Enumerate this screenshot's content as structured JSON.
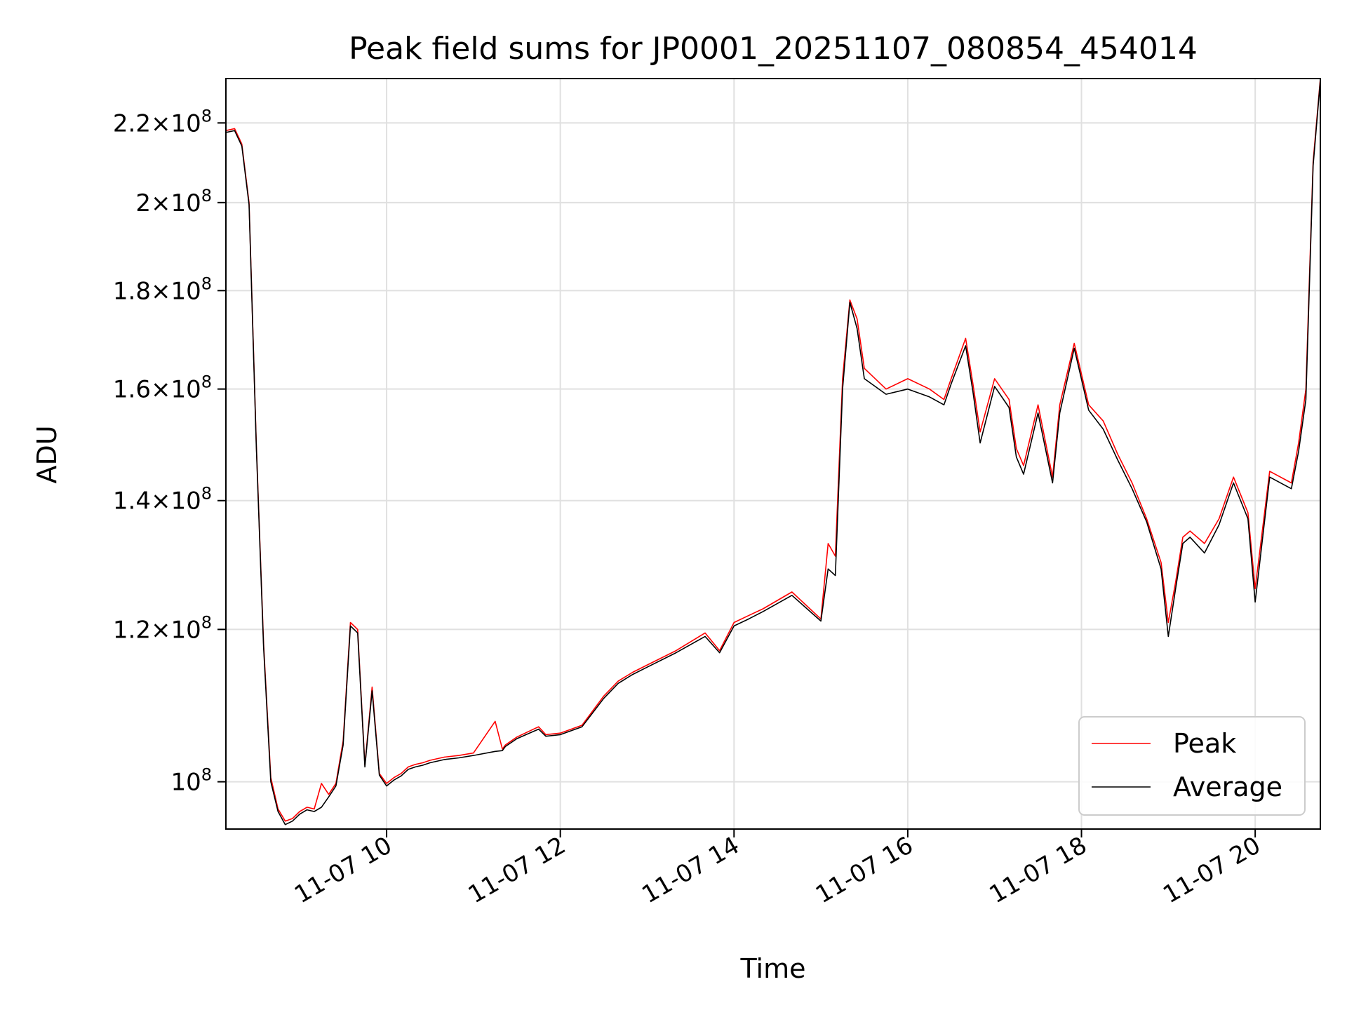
{
  "chart_data": {
    "type": "line",
    "title": "Peak field sums for JP0001_20251107_080854_454014",
    "xlabel": "Time",
    "ylabel": "ADU",
    "yscale": "log",
    "xlim": [
      "2025-11-07 08:09",
      "2025-11-07 20:45"
    ],
    "ylim": [
      94500000,
      232000000
    ],
    "grid": true,
    "legend_position": "lower right",
    "x_ticks": [
      "11-07 10",
      "11-07 12",
      "11-07 14",
      "11-07 16",
      "11-07 18",
      "11-07 20"
    ],
    "y_ticks": [
      {
        "value": 100000000,
        "mantissa": "",
        "exponent": "8"
      },
      {
        "value": 120000000,
        "mantissa": "1.2",
        "exponent": "8"
      },
      {
        "value": 140000000,
        "mantissa": "1.4",
        "exponent": "8"
      },
      {
        "value": 160000000,
        "mantissa": "1.6",
        "exponent": "8"
      },
      {
        "value": 180000000,
        "mantissa": "1.8",
        "exponent": "8"
      },
      {
        "value": 200000000,
        "mantissa": "2",
        "exponent": "8"
      },
      {
        "value": 220000000,
        "mantissa": "2.2",
        "exponent": "8"
      }
    ],
    "x": [
      "08:09",
      "08:15",
      "08:20",
      "08:25",
      "08:30",
      "08:35",
      "08:40",
      "08:45",
      "08:50",
      "08:55",
      "09:00",
      "09:05",
      "09:10",
      "09:15",
      "09:20",
      "09:25",
      "09:30",
      "09:35",
      "09:40",
      "09:45",
      "09:50",
      "09:55",
      "10:00",
      "10:05",
      "10:10",
      "10:15",
      "10:20",
      "10:25",
      "10:30",
      "10:40",
      "10:50",
      "11:00",
      "11:15",
      "11:20",
      "11:22",
      "11:30",
      "11:45",
      "11:50",
      "12:00",
      "12:15",
      "12:30",
      "12:40",
      "12:50",
      "13:00",
      "13:20",
      "13:40",
      "13:50",
      "14:00",
      "14:10",
      "14:20",
      "14:40",
      "15:00",
      "15:05",
      "15:10",
      "15:15",
      "15:20",
      "15:25",
      "15:30",
      "15:45",
      "16:00",
      "16:15",
      "16:25",
      "16:30",
      "16:40",
      "16:45",
      "16:50",
      "17:00",
      "17:10",
      "17:15",
      "17:20",
      "17:30",
      "17:40",
      "17:45",
      "17:55",
      "18:05",
      "18:15",
      "18:25",
      "18:35",
      "18:45",
      "18:55",
      "19:00",
      "19:05",
      "19:10",
      "19:15",
      "19:25",
      "19:35",
      "19:45",
      "19:55",
      "20:00",
      "20:10",
      "20:25",
      "20:30",
      "20:35",
      "20:40",
      "20:45"
    ],
    "series": [
      {
        "name": "Peak",
        "color": "#ff0000",
        "values": [
          218000000,
          218500000,
          214500000,
          200000000,
          150000000,
          118000000,
          100500000,
          96800000,
          95400000,
          95700000,
          96500000,
          97000000,
          96800000,
          99800000,
          98500000,
          99800000,
          105000000,
          121000000,
          120000000,
          102000000,
          112000000,
          101000000,
          99800000,
          100500000,
          101000000,
          101800000,
          102100000,
          102300000,
          102600000,
          103000000,
          103200000,
          103500000,
          107500000,
          104000000,
          104500000,
          105500000,
          106800000,
          105800000,
          106000000,
          107000000,
          110800000,
          112800000,
          114000000,
          115000000,
          117000000,
          119500000,
          117000000,
          121000000,
          122000000,
          123000000,
          125500000,
          121500000,
          133000000,
          131000000,
          162000000,
          178000000,
          174000000,
          164000000,
          160000000,
          162000000,
          160000000,
          158000000,
          162000000,
          170000000,
          161000000,
          152000000,
          162000000,
          158000000,
          149000000,
          146000000,
          157000000,
          144000000,
          157000000,
          169000000,
          157000000,
          154000000,
          148000000,
          143000000,
          137000000,
          130000000,
          121000000,
          127000000,
          134000000,
          135000000,
          133000000,
          137000000,
          144000000,
          138000000,
          126000000,
          145000000,
          143000000,
          150000000,
          160000000,
          210000000,
          232000000
        ]
      },
      {
        "name": "Average",
        "color": "#000000",
        "values": [
          217500000,
          218000000,
          214000000,
          199500000,
          149500000,
          117500000,
          100000000,
          96500000,
          95000000,
          95400000,
          96200000,
          96700000,
          96500000,
          97000000,
          98200000,
          99500000,
          104500000,
          120500000,
          119500000,
          101800000,
          111500000,
          100800000,
          99500000,
          100200000,
          100700000,
          101500000,
          101800000,
          102000000,
          102300000,
          102700000,
          102900000,
          103200000,
          103700000,
          103800000,
          104300000,
          105300000,
          106500000,
          105600000,
          105800000,
          106800000,
          110500000,
          112500000,
          113700000,
          114700000,
          116700000,
          119000000,
          116700000,
          120500000,
          121500000,
          122600000,
          125000000,
          121200000,
          129000000,
          128000000,
          160000000,
          177500000,
          172000000,
          162000000,
          159000000,
          160000000,
          158500000,
          157000000,
          161000000,
          168500000,
          159500000,
          150000000,
          160500000,
          156500000,
          147500000,
          144500000,
          155500000,
          143000000,
          155500000,
          168000000,
          156000000,
          152500000,
          147000000,
          142000000,
          136500000,
          129000000,
          119000000,
          126000000,
          133000000,
          134000000,
          131500000,
          136000000,
          143000000,
          137000000,
          124000000,
          144000000,
          142000000,
          148500000,
          158000000,
          209000000,
          231500000
        ]
      }
    ]
  }
}
